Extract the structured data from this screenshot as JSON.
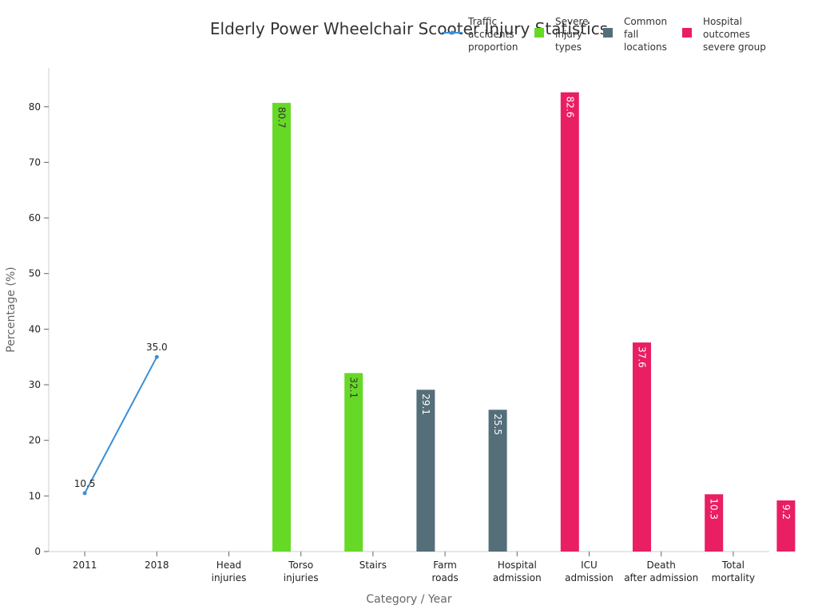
{
  "chart_data": {
    "type": "bar",
    "title": "Elderly Power Wheelchair Scooter Injury Statistics",
    "xlabel": "Category / Year",
    "ylabel": "Percentage (%)",
    "ylim": [
      0,
      87
    ],
    "yticks": [
      0,
      10,
      20,
      30,
      40,
      50,
      60,
      70,
      80
    ],
    "grid": false,
    "legend_position": "top-right",
    "categories": [
      [
        "2011"
      ],
      [
        "2018"
      ],
      [
        "Head",
        "injuries"
      ],
      [
        "Torso",
        "injuries"
      ],
      [
        "Stairs"
      ],
      [
        "Farm",
        "roads"
      ],
      [
        "Hospital",
        "admission"
      ],
      [
        "ICU",
        "admission"
      ],
      [
        "Death",
        "after admission"
      ],
      [
        "Total",
        "mortality"
      ]
    ],
    "series": [
      {
        "name": [
          "Traffic",
          "accidents",
          "proportion"
        ],
        "type": "line",
        "color": "#3b8fd6",
        "points": [
          {
            "category_index": 0,
            "value": 10.5,
            "label": "10.5"
          },
          {
            "category_index": 1,
            "value": 35.0,
            "label": "35.0"
          }
        ]
      },
      {
        "name": [
          "Severe",
          "injury",
          "types"
        ],
        "type": "bar",
        "color": "#66d926",
        "label_color": "#333333",
        "points": [
          {
            "category_index": 2,
            "value": 80.7,
            "label": "80.7"
          },
          {
            "category_index": 3,
            "value": 32.1,
            "label": "32.1"
          }
        ]
      },
      {
        "name": [
          "Common",
          "fall",
          "locations"
        ],
        "type": "bar",
        "color": "#546e7a",
        "label_color": "#ffffff",
        "points": [
          {
            "category_index": 4,
            "value": 29.1,
            "label": "29.1"
          },
          {
            "category_index": 5,
            "value": 25.5,
            "label": "25.5"
          }
        ]
      },
      {
        "name": [
          "Hospital",
          "outcomes",
          "severe group"
        ],
        "type": "bar",
        "color": "#e91e63",
        "label_color": "#ffffff",
        "points": [
          {
            "category_index": 6,
            "value": 82.6,
            "label": "82.6"
          },
          {
            "category_index": 7,
            "value": 37.6,
            "label": "37.6"
          },
          {
            "category_index": 8,
            "value": 10.3,
            "label": "10.3"
          },
          {
            "category_index": 9,
            "value": 9.2,
            "label": "9.2"
          }
        ]
      }
    ]
  }
}
